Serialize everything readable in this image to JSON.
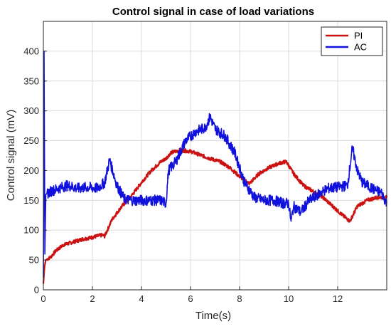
{
  "chart_data": {
    "type": "line",
    "title": "Control signal in case of load variations",
    "xlabel": "Time(s)",
    "ylabel": "Control signal (mV)",
    "xlim": [
      0,
      14
    ],
    "ylim": [
      0,
      450
    ],
    "xticks": [
      0,
      2,
      4,
      6,
      8,
      10,
      12
    ],
    "yticks": [
      0,
      50,
      100,
      150,
      200,
      250,
      300,
      350,
      400
    ],
    "grid": true,
    "legend_position": "top-right",
    "series": [
      {
        "name": "PI",
        "color": "#cc1111",
        "x": [
          0,
          0.05,
          0.1,
          0.3,
          0.5,
          0.8,
          1.2,
          1.6,
          2.0,
          2.4,
          2.5,
          2.8,
          3.2,
          3.6,
          4.0,
          4.4,
          4.8,
          5.0,
          5.2,
          5.6,
          6.0,
          6.4,
          6.8,
          7.2,
          7.6,
          8.0,
          8.4,
          8.8,
          9.2,
          9.6,
          9.9,
          10.2,
          10.6,
          11.0,
          11.4,
          11.8,
          12.2,
          12.5,
          12.8,
          13.2,
          13.6,
          14.0
        ],
        "y": [
          10,
          40,
          50,
          55,
          65,
          75,
          80,
          85,
          88,
          92,
          90,
          118,
          140,
          158,
          180,
          200,
          215,
          220,
          230,
          234,
          232,
          226,
          220,
          215,
          205,
          190,
          178,
          195,
          205,
          212,
          215,
          195,
          175,
          165,
          155,
          140,
          125,
          115,
          140,
          150,
          155,
          155
        ]
      },
      {
        "name": "AC",
        "color": "#1111dd",
        "x": [
          0,
          0.03,
          0.06,
          0.1,
          0.3,
          0.6,
          1.0,
          1.4,
          1.8,
          2.2,
          2.5,
          2.7,
          3.0,
          3.3,
          3.6,
          4.0,
          4.4,
          4.8,
          5.0,
          5.1,
          5.4,
          5.8,
          6.2,
          6.6,
          6.8,
          7.0,
          7.4,
          7.8,
          8.2,
          8.6,
          9.0,
          9.4,
          9.8,
          10.0,
          10.1,
          10.2,
          10.5,
          10.8,
          11.2,
          11.6,
          12.0,
          12.4,
          12.6,
          12.8,
          13.0,
          13.4,
          13.8,
          14.0
        ],
        "y": [
          20,
          400,
          60,
          160,
          165,
          170,
          175,
          170,
          172,
          170,
          180,
          218,
          175,
          152,
          150,
          150,
          150,
          150,
          145,
          200,
          215,
          250,
          265,
          272,
          290,
          270,
          258,
          230,
          180,
          155,
          150,
          150,
          145,
          145,
          115,
          140,
          130,
          148,
          160,
          170,
          172,
          175,
          238,
          200,
          180,
          170,
          162,
          145
        ]
      }
    ]
  }
}
